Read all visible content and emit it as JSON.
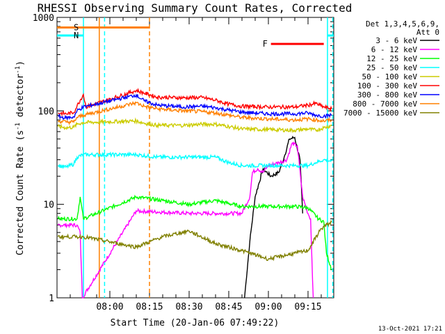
{
  "chart_data": {
    "type": "line",
    "title": "RHESSI Observing Summary Count Rates, Corrected",
    "xlabel": "Start Time (20-Jan-06 07:49:22)",
    "ylabel_main": "Corrected Count Rate (s",
    "ylabel_sup1": "-1",
    "ylabel_mid": " detector",
    "ylabel_sup2": "-1",
    "ylabel_end": ")",
    "y_scale": "log",
    "ylim": [
      1,
      1000
    ],
    "xlim_minutes": [
      -9.37,
      95.37
    ],
    "x_reference_time": "07:49:22",
    "y_ticks": [
      {
        "value": 1000,
        "label": "1000"
      },
      {
        "value": 100,
        "label": "100"
      },
      {
        "value": 10,
        "label": "10"
      },
      {
        "value": 1,
        "label": "1"
      }
    ],
    "x_ticks": [
      {
        "minutes": 10.63,
        "label": "08:00"
      },
      {
        "minutes": 25.63,
        "label": "08:15"
      },
      {
        "minutes": 40.63,
        "label": "08:30"
      },
      {
        "minutes": 55.63,
        "label": "08:45"
      },
      {
        "minutes": 70.63,
        "label": "09:00"
      },
      {
        "minutes": 85.63,
        "label": "09:15"
      }
    ],
    "legend_header": [
      "Det 1,3,4,5,6,9,",
      "Att 0"
    ],
    "series": [
      {
        "name": "3 - 6 keV",
        "color": "#000000",
        "key": "s3_6"
      },
      {
        "name": "6 - 12 keV",
        "color": "#ff00ff",
        "key": "s6_12"
      },
      {
        "name": "12 - 25 keV",
        "color": "#00ff00",
        "key": "s12_25"
      },
      {
        "name": "25 - 50 keV",
        "color": "#00ffff",
        "key": "s25_50"
      },
      {
        "name": "50 - 100 keV",
        "color": "#cccc00",
        "key": "s50_100"
      },
      {
        "name": "100 - 300 keV",
        "color": "#ff0000",
        "key": "s100_300"
      },
      {
        "name": "300 - 800 keV",
        "color": "#0000ff",
        "key": "s300_800"
      },
      {
        "name": "800 - 7000 keV",
        "color": "#ff8000",
        "key": "s800_7000"
      },
      {
        "name": "7000 - 15000 keV",
        "color": "#808000",
        "key": "s7000_15000"
      }
    ],
    "series_data": {
      "s100_300": [
        [
          -9.0,
          95
        ],
        [
          -6.0,
          93
        ],
        [
          -3.0,
          96
        ],
        [
          -1.8,
          113
        ],
        [
          0.6,
          150
        ],
        [
          1.6,
          110
        ],
        [
          20.6,
          165
        ],
        [
          23.6,
          155
        ],
        [
          28.6,
          140
        ],
        [
          38.6,
          138
        ],
        [
          45.6,
          139
        ],
        [
          50.6,
          130
        ],
        [
          55.6,
          118
        ],
        [
          60.6,
          112
        ],
        [
          70.6,
          110
        ],
        [
          80.6,
          110
        ],
        [
          85.6,
          115
        ],
        [
          88.6,
          120
        ],
        [
          91.6,
          110
        ],
        [
          94.6,
          105
        ]
      ],
      "s300_800": [
        [
          -9.0,
          87
        ],
        [
          -6.0,
          84
        ],
        [
          -3.0,
          86
        ],
        [
          -1.8,
          100
        ],
        [
          0.6,
          110
        ],
        [
          20.6,
          148
        ],
        [
          23.6,
          128
        ],
        [
          28.6,
          115
        ],
        [
          38.6,
          110
        ],
        [
          45.6,
          112
        ],
        [
          50.6,
          108
        ],
        [
          55.6,
          102
        ],
        [
          60.6,
          97
        ],
        [
          70.6,
          93
        ],
        [
          80.6,
          93
        ],
        [
          85.6,
          95
        ],
        [
          88.6,
          90
        ],
        [
          91.6,
          88
        ],
        [
          94.6,
          90
        ]
      ],
      "s800_7000": [
        [
          -9.0,
          78
        ],
        [
          -6.0,
          76
        ],
        [
          -3.0,
          76
        ],
        [
          -1.8,
          85
        ],
        [
          0.6,
          90
        ],
        [
          20.6,
          122
        ],
        [
          23.6,
          112
        ],
        [
          28.6,
          105
        ],
        [
          38.6,
          100
        ],
        [
          45.6,
          98
        ],
        [
          50.6,
          95
        ],
        [
          55.6,
          90
        ],
        [
          60.6,
          85
        ],
        [
          70.6,
          82
        ],
        [
          80.6,
          80
        ],
        [
          85.6,
          82
        ],
        [
          88.6,
          80
        ],
        [
          91.6,
          78
        ],
        [
          94.6,
          80
        ]
      ],
      "s50_100": [
        [
          -9.0,
          68
        ],
        [
          -6.0,
          66
        ],
        [
          -3.0,
          67
        ],
        [
          -1.8,
          72
        ],
        [
          0.6,
          75
        ],
        [
          20.6,
          78
        ],
        [
          23.6,
          74
        ],
        [
          28.6,
          70
        ],
        [
          38.6,
          70
        ],
        [
          45.6,
          72
        ],
        [
          50.6,
          72
        ],
        [
          55.6,
          68
        ],
        [
          60.6,
          64
        ],
        [
          70.6,
          63
        ],
        [
          80.6,
          62
        ],
        [
          85.6,
          64
        ],
        [
          88.6,
          62
        ],
        [
          91.6,
          66
        ],
        [
          94.6,
          70
        ]
      ],
      "s25_50": [
        [
          -9.0,
          26
        ],
        [
          -6.0,
          25
        ],
        [
          -3.0,
          27
        ],
        [
          -1.8,
          32
        ],
        [
          0.6,
          34
        ],
        [
          20.6,
          34
        ],
        [
          28.6,
          32
        ],
        [
          38.6,
          32
        ],
        [
          45.6,
          32
        ],
        [
          50.6,
          32
        ],
        [
          55.6,
          28
        ],
        [
          60.6,
          26
        ],
        [
          70.6,
          26
        ],
        [
          80.6,
          26
        ],
        [
          85.6,
          26
        ],
        [
          88.6,
          28
        ],
        [
          91.6,
          30
        ],
        [
          94.6,
          29
        ]
      ],
      "s12_25": [
        [
          -9.0,
          7
        ],
        [
          -1.8,
          7
        ],
        [
          -0.6,
          12
        ],
        [
          0.6,
          7
        ],
        [
          20.6,
          12
        ],
        [
          30.6,
          11
        ],
        [
          40.6,
          10
        ],
        [
          50.6,
          11
        ],
        [
          60.6,
          9.5
        ],
        [
          70.6,
          9.5
        ],
        [
          80.6,
          9.5
        ],
        [
          85.6,
          9.2
        ],
        [
          89.6,
          7
        ],
        [
          91.6,
          6.5
        ],
        [
          92.6,
          3
        ],
        [
          94.6,
          2
        ]
      ],
      "s6_12": [
        [
          -9.0,
          6
        ],
        [
          -1.8,
          6
        ],
        [
          -0.6,
          5
        ],
        [
          0.2,
          1
        ],
        [
          20.6,
          8.5
        ],
        [
          40.6,
          8
        ],
        [
          55.6,
          8
        ],
        [
          60.6,
          8
        ],
        [
          63.6,
          12
        ],
        [
          64.6,
          22
        ],
        [
          66.6,
          24
        ],
        [
          68.6,
          22
        ],
        [
          70.6,
          26
        ],
        [
          74.6,
          28
        ],
        [
          77.6,
          30
        ],
        [
          79.6,
          45
        ],
        [
          81.6,
          42
        ],
        [
          83.6,
          12
        ],
        [
          85.6,
          8
        ],
        [
          86.6,
          7
        ],
        [
          87.6,
          1
        ]
      ],
      "s3_6": [
        [
          61.6,
          1
        ],
        [
          63.6,
          4
        ],
        [
          65.6,
          12
        ],
        [
          68.6,
          24
        ],
        [
          71.6,
          20
        ],
        [
          74.6,
          22
        ],
        [
          76.6,
          32
        ],
        [
          78.6,
          50
        ],
        [
          80.6,
          52
        ],
        [
          82.6,
          30
        ],
        [
          83.6,
          8
        ]
      ],
      "s7000_15000": [
        [
          -9.0,
          4.5
        ],
        [
          -1.8,
          4.5
        ],
        [
          0.6,
          4.5
        ],
        [
          20.6,
          3.5
        ],
        [
          30.6,
          4.5
        ],
        [
          40.6,
          5.2
        ],
        [
          50.6,
          3.8
        ],
        [
          60.6,
          3.2
        ],
        [
          70.6,
          2.6
        ],
        [
          80.6,
          3.0
        ],
        [
          85.6,
          3.2
        ],
        [
          90.6,
          5.5
        ],
        [
          94.6,
          6.5
        ]
      ]
    },
    "annotations": [
      {
        "label": "S",
        "color": "#ff8000",
        "bar_minutes": [
          -9.37,
          25.63
        ],
        "y_value": 780
      },
      {
        "label": "N",
        "color": "#00ffff",
        "bar_minutes": [
          -9.37,
          0.63
        ],
        "y_value": 640
      },
      {
        "label": "F",
        "color": "#ff0000",
        "bar_minutes": [
          71.6,
          91.6
        ],
        "y_value": 520
      }
    ],
    "vertical_lines": [
      {
        "minutes": 0.63,
        "color": "#00ffff",
        "style": "solid"
      },
      {
        "minutes": 6.63,
        "color": "#ff8000",
        "style": "solid"
      },
      {
        "minutes": 8.63,
        "color": "#00ffff",
        "style": "dashed"
      },
      {
        "minutes": 25.63,
        "color": "#ff8000",
        "style": "dashed"
      },
      {
        "minutes": 93.0,
        "color": "#00ffff",
        "style": "solid"
      },
      {
        "minutes": 95.0,
        "color": "#00ffff",
        "style": "dashed"
      }
    ],
    "gaps_minutes": [
      [
        0.63,
        25.63
      ]
    ]
  },
  "footer_date": "13-Oct-2021 17:21"
}
